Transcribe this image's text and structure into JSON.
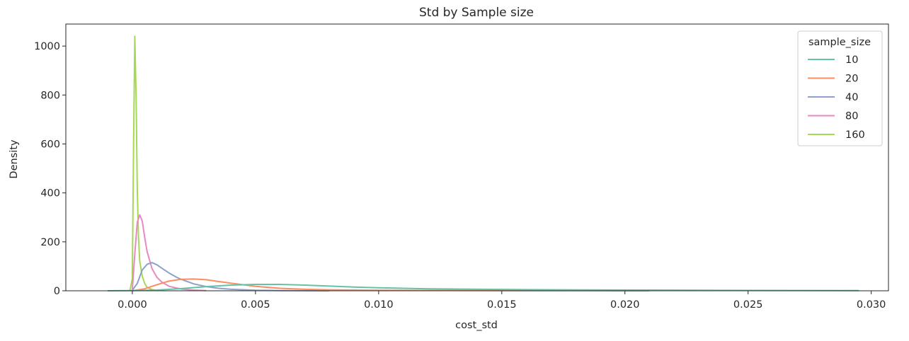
{
  "chart_data": {
    "type": "line",
    "title": "Std by Sample size",
    "xlabel": "cost_std",
    "ylabel": "Density",
    "xlim": [
      -0.0027,
      0.0307
    ],
    "ylim": [
      0,
      1090
    ],
    "xticks": [
      0.0,
      0.005,
      0.01,
      0.015,
      0.02,
      0.025,
      0.03
    ],
    "xtick_labels": [
      "0.000",
      "0.005",
      "0.010",
      "0.015",
      "0.020",
      "0.025",
      "0.030"
    ],
    "yticks": [
      0,
      200,
      400,
      600,
      800,
      1000
    ],
    "ytick_labels": [
      "0",
      "200",
      "400",
      "600",
      "800",
      "1000"
    ],
    "grid": false,
    "legend": {
      "title": "sample_size",
      "placement": "top-right"
    },
    "series": [
      {
        "name": "10",
        "color": "#66c2a5",
        "x": [
          -0.001,
          0.0,
          0.001,
          0.002,
          0.003,
          0.004,
          0.005,
          0.006,
          0.007,
          0.008,
          0.009,
          0.01,
          0.012,
          0.014,
          0.016,
          0.018,
          0.02,
          0.022,
          0.025,
          0.0295
        ],
        "y": [
          0,
          0.5,
          3,
          9,
          17,
          23,
          26,
          26,
          23,
          19,
          15,
          12,
          8,
          6,
          4.5,
          3.5,
          3,
          2.5,
          1.5,
          0.5
        ]
      },
      {
        "name": "20",
        "color": "#fc8d62",
        "x": [
          0.0,
          0.0005,
          0.001,
          0.0015,
          0.002,
          0.0025,
          0.003,
          0.0035,
          0.004,
          0.005,
          0.006,
          0.007,
          0.008,
          0.009,
          0.01,
          0.012,
          0.015,
          0.018,
          0.021
        ],
        "y": [
          0,
          8,
          25,
          40,
          47,
          48,
          45,
          38,
          31,
          18,
          10,
          6,
          4,
          3,
          2,
          1.5,
          1,
          0.5,
          0
        ]
      },
      {
        "name": "40",
        "color": "#8da0cb",
        "x": [
          0.0,
          0.0002,
          0.0004,
          0.0006,
          0.0008,
          0.001,
          0.0012,
          0.0015,
          0.0018,
          0.002,
          0.0025,
          0.003,
          0.0035,
          0.004,
          0.005,
          0.006,
          0.008
        ],
        "y": [
          2,
          30,
          85,
          108,
          115,
          106,
          92,
          72,
          55,
          46,
          28,
          17,
          10,
          6,
          2,
          1,
          0
        ]
      },
      {
        "name": "80",
        "color": "#e78ac3",
        "x": [
          0.0,
          0.0001,
          0.0002,
          0.0003,
          0.0004,
          0.0005,
          0.0006,
          0.0008,
          0.001,
          0.0012,
          0.0015,
          0.002,
          0.0025,
          0.003
        ],
        "y": [
          5,
          150,
          280,
          310,
          285,
          220,
          160,
          90,
          55,
          35,
          18,
          7,
          3,
          1
        ]
      },
      {
        "name": "160",
        "color": "#a6d854",
        "x": [
          -0.0001,
          0.0,
          5e-05,
          0.0001,
          0.00015,
          0.0002,
          0.00025,
          0.0003,
          0.0004,
          0.0005,
          0.0006,
          0.0008,
          0.001
        ],
        "y": [
          0,
          50,
          600,
          1040,
          800,
          420,
          220,
          120,
          60,
          30,
          14,
          5,
          1
        ]
      }
    ]
  }
}
